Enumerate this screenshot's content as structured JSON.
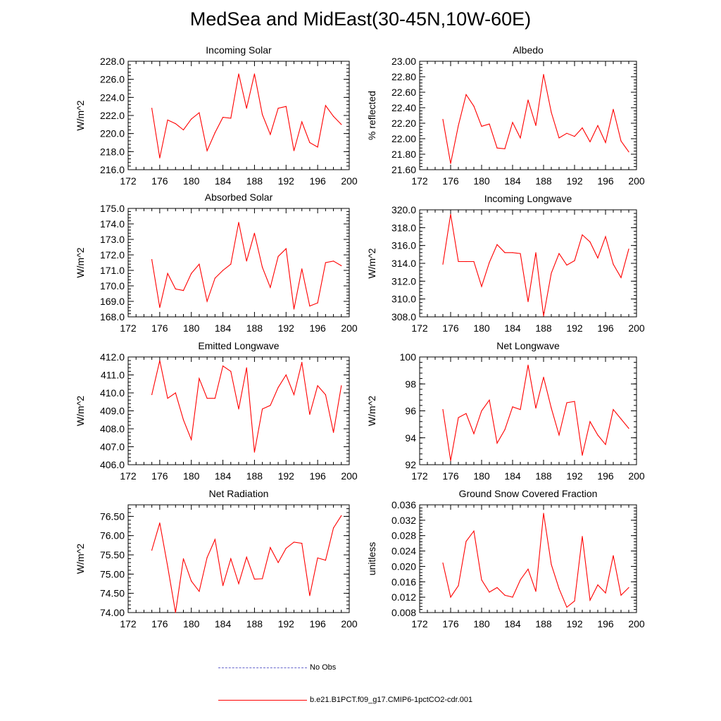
{
  "title": "MedSea and MidEast(30-45N,10W-60E)",
  "legend": [
    {
      "label": "No Obs",
      "color": "#6666cc",
      "style": "dashed"
    },
    {
      "label": "b.e21.B1PCT.f09_g17.CMIP6-1pctCO2-cdr.001",
      "color": "#ff0000",
      "style": "solid"
    }
  ],
  "chart_data": [
    {
      "type": "line",
      "title": "Incoming Solar",
      "ylabel": "W/m^2",
      "xlim": [
        172,
        200
      ],
      "ylim": [
        216.0,
        228.0
      ],
      "xticks": [
        "172",
        "176",
        "180",
        "184",
        "188",
        "192",
        "196",
        "200"
      ],
      "yticks": [
        "216.0",
        "218.0",
        "220.0",
        "222.0",
        "224.0",
        "226.0",
        "228.0"
      ],
      "x": [
        175,
        176,
        177,
        178,
        179,
        180,
        181,
        182,
        183,
        184,
        185,
        186,
        187,
        188,
        189,
        190,
        191,
        192,
        193,
        194,
        195,
        196,
        197,
        198,
        199
      ],
      "series": [
        {
          "name": "b.e21.B1PCT.f09_g17.CMIP6-1pctCO2-cdr.001",
          "color": "#ff0000",
          "values": [
            222.8,
            217.3,
            221.5,
            221.1,
            220.4,
            221.6,
            222.3,
            218.1,
            220.1,
            221.8,
            221.7,
            226.6,
            222.8,
            226.6,
            222.1,
            219.9,
            222.8,
            223.0,
            218.1,
            221.3,
            219.0,
            218.5,
            223.1,
            221.9,
            221.0
          ]
        }
      ]
    },
    {
      "type": "line",
      "title": "Albedo",
      "ylabel": "% reflected",
      "xlim": [
        172,
        200
      ],
      "ylim": [
        21.6,
        23.0
      ],
      "xticks": [
        "172",
        "176",
        "180",
        "184",
        "188",
        "192",
        "196",
        "200"
      ],
      "yticks": [
        "21.60",
        "21.80",
        "22.00",
        "22.20",
        "22.40",
        "22.60",
        "22.80",
        "23.00"
      ],
      "x": [
        175,
        176,
        177,
        178,
        179,
        180,
        181,
        182,
        183,
        184,
        185,
        186,
        187,
        188,
        189,
        190,
        191,
        192,
        193,
        194,
        195,
        196,
        197,
        198,
        199
      ],
      "series": [
        {
          "name": "b.e21.B1PCT.f09_g17.CMIP6-1pctCO2-cdr.001",
          "color": "#ff0000",
          "values": [
            22.25,
            21.68,
            22.17,
            22.57,
            22.42,
            22.16,
            22.19,
            21.88,
            21.87,
            22.21,
            22.01,
            22.5,
            22.17,
            22.83,
            22.34,
            22.01,
            22.07,
            22.03,
            22.14,
            21.96,
            22.17,
            21.95,
            22.38,
            21.97,
            21.83
          ]
        }
      ]
    },
    {
      "type": "line",
      "title": "Absorbed Solar",
      "ylabel": "W/m^2",
      "xlim": [
        172,
        200
      ],
      "ylim": [
        168.0,
        175.0
      ],
      "xticks": [
        "172",
        "176",
        "180",
        "184",
        "188",
        "192",
        "196",
        "200"
      ],
      "yticks": [
        "168.0",
        "169.0",
        "170.0",
        "171.0",
        "172.0",
        "173.0",
        "174.0",
        "175.0"
      ],
      "x": [
        175,
        176,
        177,
        178,
        179,
        180,
        181,
        182,
        183,
        184,
        185,
        186,
        187,
        188,
        189,
        190,
        191,
        192,
        193,
        194,
        195,
        196,
        197,
        198,
        199
      ],
      "series": [
        {
          "name": "b.e21.B1PCT.f09_g17.CMIP6-1pctCO2-cdr.001",
          "color": "#ff0000",
          "values": [
            171.7,
            168.6,
            170.8,
            169.8,
            169.7,
            170.8,
            171.4,
            169.0,
            170.5,
            171.0,
            171.4,
            174.1,
            171.6,
            173.4,
            171.2,
            169.9,
            171.9,
            172.4,
            168.5,
            171.1,
            168.7,
            168.9,
            171.5,
            171.6,
            171.3
          ]
        }
      ]
    },
    {
      "type": "line",
      "title": "Incoming Longwave",
      "ylabel": "W/m^2",
      "xlim": [
        172,
        200
      ],
      "ylim": [
        308.0,
        320.0
      ],
      "xticks": [
        "172",
        "176",
        "180",
        "184",
        "188",
        "192",
        "196",
        "200"
      ],
      "yticks": [
        "308.0",
        "310.0",
        "312.0",
        "314.0",
        "316.0",
        "318.0",
        "320.0"
      ],
      "x": [
        175,
        176,
        177,
        178,
        179,
        180,
        181,
        182,
        183,
        184,
        185,
        186,
        187,
        188,
        189,
        190,
        191,
        192,
        193,
        194,
        195,
        196,
        197,
        198,
        199
      ],
      "series": [
        {
          "name": "b.e21.B1PCT.f09_g17.CMIP6-1pctCO2-cdr.001",
          "color": "#ff0000",
          "values": [
            313.9,
            319.5,
            314.2,
            314.2,
            314.2,
            311.4,
            314.1,
            316.1,
            315.2,
            315.2,
            315.1,
            309.7,
            315.2,
            308.1,
            312.9,
            315.1,
            313.8,
            314.3,
            317.2,
            316.4,
            314.6,
            317.0,
            313.9,
            312.4,
            315.6
          ]
        }
      ]
    },
    {
      "type": "line",
      "title": "Emitted Longwave",
      "ylabel": "W/m^2",
      "xlim": [
        172,
        200
      ],
      "ylim": [
        406.0,
        412.0
      ],
      "xticks": [
        "172",
        "176",
        "180",
        "184",
        "188",
        "192",
        "196",
        "200"
      ],
      "yticks": [
        "406.0",
        "407.0",
        "408.0",
        "409.0",
        "410.0",
        "411.0",
        "412.0"
      ],
      "x": [
        175,
        176,
        177,
        178,
        179,
        180,
        181,
        182,
        183,
        184,
        185,
        186,
        187,
        188,
        189,
        190,
        191,
        192,
        193,
        194,
        195,
        196,
        197,
        198,
        199
      ],
      "series": [
        {
          "name": "b.e21.B1PCT.f09_g17.CMIP6-1pctCO2-cdr.001",
          "color": "#ff0000",
          "values": [
            409.9,
            411.8,
            409.7,
            410.0,
            408.5,
            407.4,
            410.8,
            409.7,
            409.7,
            411.5,
            411.2,
            409.1,
            411.4,
            406.7,
            409.1,
            409.3,
            410.3,
            411.0,
            409.9,
            411.7,
            408.8,
            410.4,
            409.9,
            407.8,
            410.4
          ]
        }
      ]
    },
    {
      "type": "line",
      "title": "Net Longwave",
      "ylabel": "W/m^2",
      "xlim": [
        172,
        200
      ],
      "ylim": [
        92,
        100
      ],
      "xticks": [
        "172",
        "176",
        "180",
        "184",
        "188",
        "192",
        "196",
        "200"
      ],
      "yticks": [
        "92",
        "94",
        "96",
        "98",
        "100"
      ],
      "x": [
        175,
        176,
        177,
        178,
        179,
        180,
        181,
        182,
        183,
        184,
        185,
        186,
        187,
        188,
        189,
        190,
        191,
        192,
        193,
        194,
        195,
        196,
        197,
        198,
        199
      ],
      "series": [
        {
          "name": "b.e21.B1PCT.f09_g17.CMIP6-1pctCO2-cdr.001",
          "color": "#ff0000",
          "values": [
            96.1,
            92.3,
            95.5,
            95.8,
            94.3,
            96.0,
            96.8,
            93.6,
            94.6,
            96.3,
            96.1,
            99.4,
            96.2,
            98.5,
            96.2,
            94.2,
            96.6,
            96.7,
            92.7,
            95.2,
            94.2,
            93.5,
            96.1,
            95.4,
            94.7
          ]
        }
      ]
    },
    {
      "type": "line",
      "title": "Net Radiation",
      "ylabel": "W/m^2",
      "xlim": [
        172,
        200
      ],
      "ylim": [
        74.0,
        76.8
      ],
      "xticks": [
        "172",
        "176",
        "180",
        "184",
        "188",
        "192",
        "196",
        "200"
      ],
      "yticks": [
        "74.00",
        "74.50",
        "75.00",
        "75.50",
        "76.00",
        "76.50"
      ],
      "x": [
        175,
        176,
        177,
        178,
        179,
        180,
        181,
        182,
        183,
        184,
        185,
        186,
        187,
        188,
        189,
        190,
        191,
        192,
        193,
        194,
        195,
        196,
        197,
        198,
        199
      ],
      "series": [
        {
          "name": "b.e21.B1PCT.f09_g17.CMIP6-1pctCO2-cdr.001",
          "color": "#ff0000",
          "values": [
            75.62,
            76.33,
            75.2,
            74.0,
            75.4,
            74.82,
            74.55,
            75.43,
            75.9,
            74.7,
            75.4,
            74.75,
            75.44,
            74.87,
            74.88,
            75.69,
            75.3,
            75.67,
            75.83,
            75.8,
            74.44,
            75.42,
            75.36,
            76.2,
            76.52
          ]
        }
      ]
    },
    {
      "type": "line",
      "title": "Ground Snow Covered Fraction",
      "ylabel": "unitless",
      "xlim": [
        172,
        200
      ],
      "ylim": [
        0.008,
        0.036
      ],
      "xticks": [
        "172",
        "176",
        "180",
        "184",
        "188",
        "192",
        "196",
        "200"
      ],
      "yticks": [
        "0.008",
        "0.012",
        "0.016",
        "0.020",
        "0.024",
        "0.028",
        "0.032",
        "0.036"
      ],
      "x": [
        175,
        176,
        177,
        178,
        179,
        180,
        181,
        182,
        183,
        184,
        185,
        186,
        187,
        188,
        189,
        190,
        191,
        192,
        193,
        194,
        195,
        196,
        197,
        198,
        199
      ],
      "series": [
        {
          "name": "b.e21.B1PCT.f09_g17.CMIP6-1pctCO2-cdr.001",
          "color": "#ff0000",
          "values": [
            0.0209,
            0.012,
            0.015,
            0.0265,
            0.0292,
            0.0165,
            0.0133,
            0.0145,
            0.0125,
            0.012,
            0.0165,
            0.0193,
            0.0135,
            0.0338,
            0.0205,
            0.0142,
            0.0094,
            0.011,
            0.0278,
            0.0112,
            0.0152,
            0.0131,
            0.0228,
            0.0125,
            0.0145
          ]
        }
      ]
    }
  ]
}
